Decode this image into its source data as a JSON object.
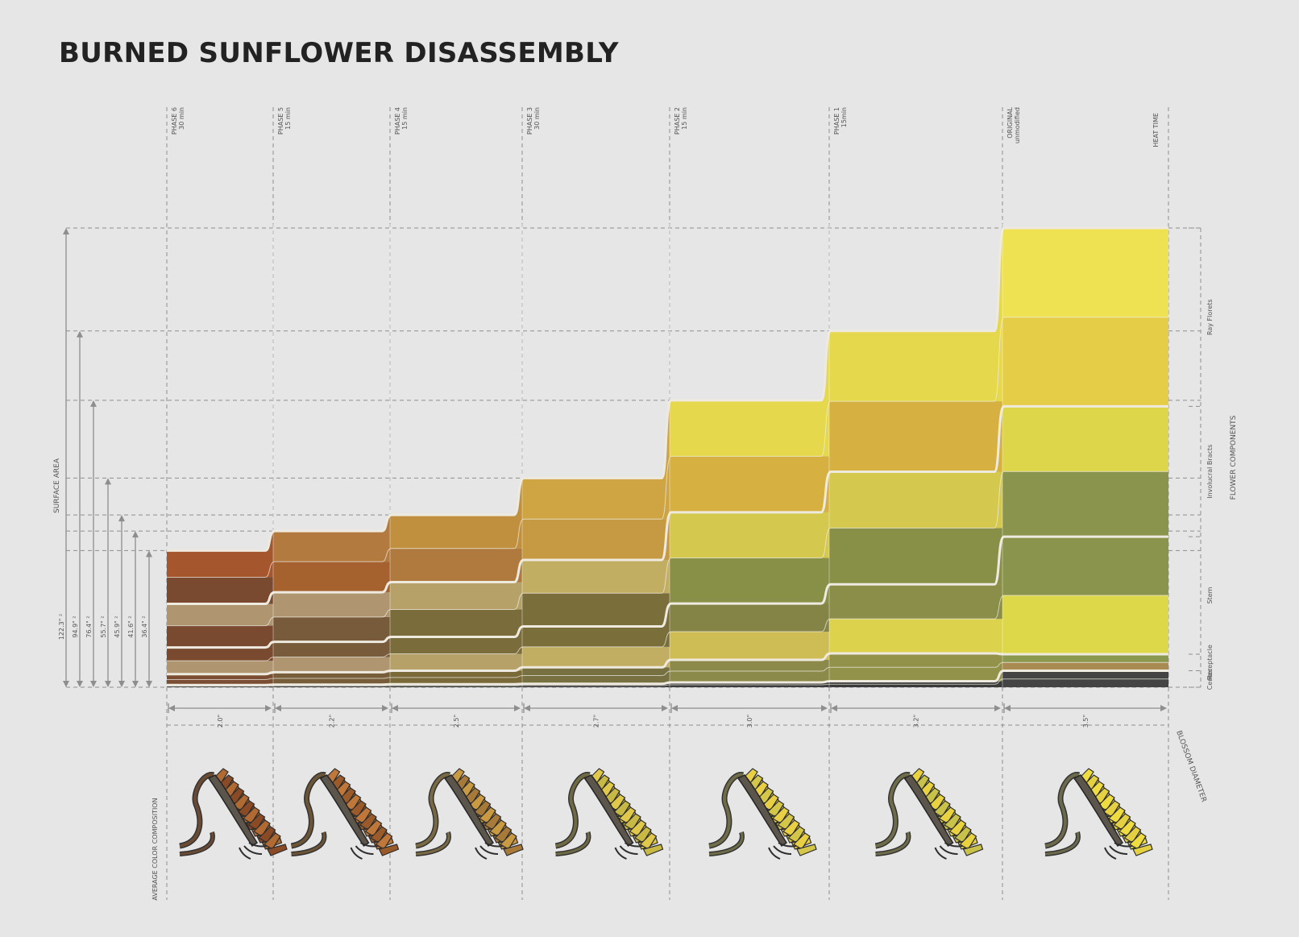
{
  "title": "BURNED SUNFLOWER DISASSEMBLY",
  "axis_labels": {
    "surface_area": "SURFACE AREA",
    "flower_components": "FLOWER COMPONENTS",
    "heat_time": "HEAT TIME",
    "blossom_diameter": "BLOSSOM DIAMETER",
    "average_color": "AVERAGE COLOR COMPOSITION"
  },
  "components": [
    "Ray Florets",
    "Involucral Bracts",
    "Stem",
    "Receptacle",
    "Center"
  ],
  "chart_data": {
    "type": "area",
    "title": "BURNED SUNFLOWER DISASSEMBLY",
    "categories": [
      "PHASE 6",
      "PHASE 5",
      "PHASE 4",
      "PHASE 3",
      "PHASE 2",
      "PHASE 1",
      "ORIGINAL"
    ],
    "heat_time": [
      "30 min",
      "15 min",
      "15 min",
      "30 min",
      "15 min",
      "15min",
      "unmodified"
    ],
    "surface_area": [
      "36.4\" ²",
      "41.6\" ²",
      "45.9\" ²",
      "55.7\" ²",
      "76.4\" ²",
      "94.9\" ²",
      "122.3\" ²"
    ],
    "surface_area_values": [
      36.4,
      41.6,
      45.9,
      55.7,
      76.4,
      94.9,
      122.3
    ],
    "blossom_diameter": [
      "2.0\"",
      "2.2\"",
      "2.5\"",
      "2.7\"",
      "3.0\"",
      "3.2\"",
      "3.5\""
    ],
    "blossom_diameter_values": [
      2.0,
      2.2,
      2.5,
      2.7,
      3.0,
      3.2,
      3.5
    ],
    "series_order": [
      "Center",
      "Receptacle",
      "Stem",
      "Involucral Bracts",
      "Ray Florets"
    ],
    "segments": [
      {
        "phase": "PHASE 6",
        "values": [
          0.6,
          2.9,
          7.1,
          11.6,
          14.2
        ],
        "colors": [
          [
            "#3b3b3b"
          ],
          [
            "#7b4e33"
          ],
          [
            "#b09571",
            "#7a4a30"
          ],
          [
            "#7a4a30",
            "#b09571"
          ],
          [
            "#7a4a30",
            "#a5562d"
          ]
        ]
      },
      {
        "phase": "PHASE 5",
        "values": [
          0.7,
          3.3,
          8.1,
          13.2,
          16.3
        ],
        "colors": [
          [
            "#3b3b3b"
          ],
          [
            "#785d3a"
          ],
          [
            "#b09571",
            "#775b3a"
          ],
          [
            "#775b3a",
            "#b09571"
          ],
          [
            "#a5612e",
            "#b27a3e"
          ]
        ]
      },
      {
        "phase": "PHASE 4",
        "values": [
          0.8,
          3.6,
          9.0,
          14.6,
          17.9
        ],
        "colors": [
          [
            "#3b3b3b"
          ],
          [
            "#7a6a3a"
          ],
          [
            "#b6a269",
            "#7b6c3c"
          ],
          [
            "#7b6c3c",
            "#b6a269"
          ],
          [
            "#b07a3e",
            "#c0903f"
          ]
        ]
      },
      {
        "phase": "PHASE 3",
        "values": [
          0.9,
          4.4,
          10.9,
          17.7,
          21.8
        ],
        "colors": [
          [
            "#3b3b3b"
          ],
          [
            "#777040"
          ],
          [
            "#c2ae62",
            "#7a6e3a"
          ],
          [
            "#7a6e3a",
            "#c2ae62"
          ],
          [
            "#c59a43",
            "#cfa544"
          ]
        ]
      },
      {
        "phase": "PHASE 2",
        "values": [
          1.3,
          6.0,
          15.0,
          24.3,
          29.8
        ],
        "colors": [
          [
            "#3b3b3b"
          ],
          [
            "#8c8a4a"
          ],
          [
            "#cebd55",
            "#858447"
          ]
        ],
        "note": "approx"
      },
      {
        "phase": "PHASE 1",
        "values": [
          1.6,
          7.4,
          18.4,
          30.0,
          37.5
        ],
        "colors": [
          [
            "#3b3b3b"
          ],
          [
            "#93924a"
          ],
          [
            "#ddd24c",
            "#8b8e48"
          ]
        ]
      },
      {
        "phase": "ORIGINAL",
        "values": [
          4.4,
          4.4,
          31.3,
          34.7,
          47.5
        ],
        "colors": [
          [
            "#444444"
          ],
          [
            "#a88a52",
            "#8a9850"
          ],
          [
            "#dcd84a",
            "#8a944c"
          ],
          [
            "#8a944c",
            "#ddd64a"
          ],
          [
            "#e6cd48",
            "#eee253"
          ]
        ]
      }
    ],
    "xlabel": "HEAT TIME",
    "ylabel": "SURFACE AREA",
    "ylim": [
      0,
      122.3
    ],
    "grid": true,
    "legend": "right"
  },
  "colors": {
    "background": "#e6e6e6",
    "grid": "#8e8e8e",
    "separator": "#eeeadf"
  }
}
